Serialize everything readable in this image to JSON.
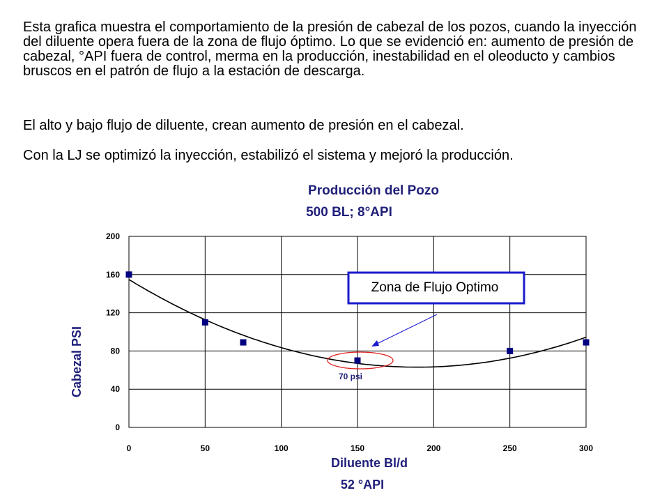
{
  "text": {
    "paragraph1": "Esta grafica muestra el comportamiento de la presión de cabezal de los pozos, cuando la inyección del diluente opera fuera de la zona de flujo óptimo. Lo que se evidenció en: aumento de presión de cabezal, °API fuera de control, merma en la producción, inestabilidad en el oleoducto y cambios bruscos en el patrón de flujo a la estación de descarga.",
    "paragraph2": "El alto y bajo flujo de diluente, crean aumento de presión en el cabezal.",
    "paragraph3": "Con la LJ se optimizó  la inyección, estabilizó  el sistema y mejoró la producción."
  },
  "chart_data": {
    "type": "scatter",
    "title": "Producción del Pozo",
    "subtitle": "500 BL; 8°API",
    "xlabel": "Diluente Bl/d",
    "xlabel2": "52 °API",
    "ylabel": "Cabezal PSI",
    "xlim": [
      0,
      300
    ],
    "ylim": [
      0,
      200
    ],
    "xticks": [
      "0",
      "50",
      "100",
      "150",
      "200",
      "250",
      "300"
    ],
    "yticks": [
      "0",
      "40",
      "80",
      "120",
      "160",
      "200"
    ],
    "grid": true,
    "series": [
      {
        "points": [
          {
            "x": 0,
            "y": 160
          },
          {
            "x": 50,
            "y": 110
          },
          {
            "x": 75,
            "y": 89
          },
          {
            "x": 150,
            "y": 70
          },
          {
            "x": 250,
            "y": 80
          },
          {
            "x": 300,
            "y": 89
          }
        ],
        "color": "#000080",
        "trendline": "polynomial"
      }
    ],
    "annotations": {
      "point_label": "70 psi",
      "zone_label": "Zona de Flujo Optimo"
    },
    "colors": {
      "title": "#1f1f7a",
      "marker": "#000080",
      "zone_box": "#1a1acc",
      "highlight_ellipse": "#e02020",
      "arrow": "#1a1acc"
    }
  }
}
